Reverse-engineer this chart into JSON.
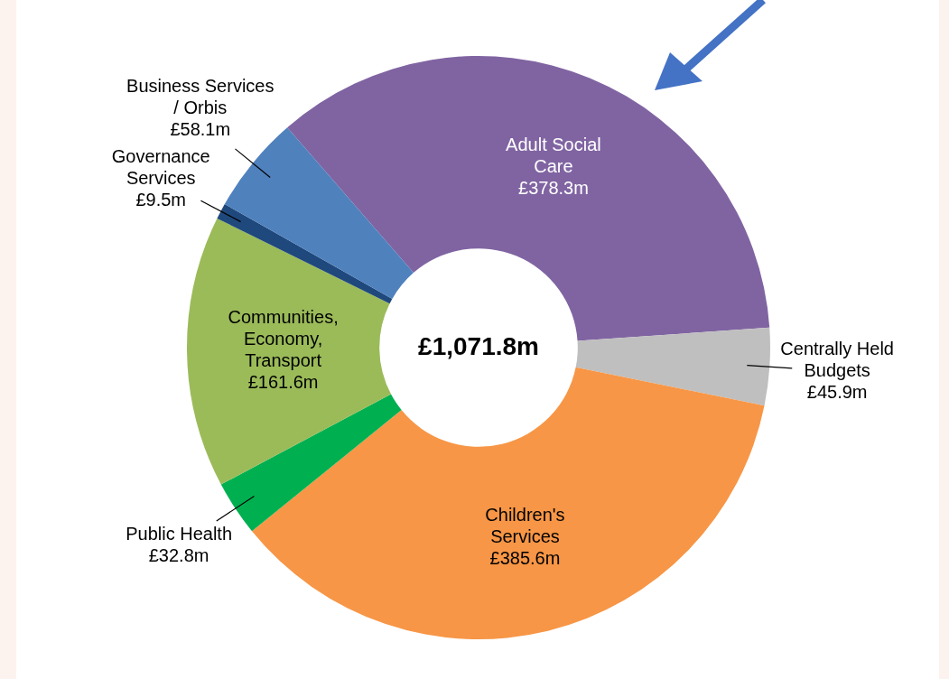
{
  "chart_data": {
    "type": "donut",
    "categories": [
      "Adult Social Care",
      "Centrally Held Budgets",
      "Children's Services",
      "Public Health",
      "Communities, Economy, Transport",
      "Governance Services",
      "Business Services / Orbis"
    ],
    "values": [
      378.3,
      45.9,
      385.6,
      32.8,
      161.6,
      9.5,
      58.1
    ],
    "value_labels": [
      "£378.3m",
      "£45.9m",
      "£385.6m",
      "£32.8m",
      "£161.6m",
      "£9.5m",
      "£58.1m"
    ],
    "colors": [
      "#8064a2",
      "#bfbfbf",
      "#f79646",
      "#00b050",
      "#9bbb59",
      "#1f497d",
      "#4f81bd"
    ],
    "annotations": [
      "£1,071.8m"
    ],
    "legend": false
  }
}
